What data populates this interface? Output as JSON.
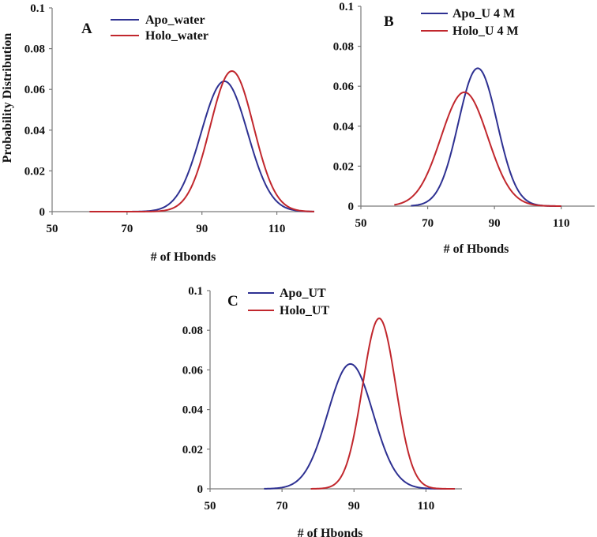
{
  "figure": {
    "ylabel": "Probability Distribution"
  },
  "chart_data": [
    {
      "type": "line",
      "panel": "A",
      "xlabel": "# of Hbonds",
      "ylabel": "Probability Distribution",
      "xlim": [
        50,
        120
      ],
      "ylim": [
        0,
        0.1
      ],
      "x_ticks": [
        "50",
        "70",
        "90",
        "110"
      ],
      "y_ticks": [
        "0",
        "0.02",
        "0.04",
        "0.06",
        "0.08",
        "0.1"
      ],
      "legend_position": "top-left",
      "series": [
        {
          "name": "Apo_water",
          "color": "#2e3192",
          "mean": 96,
          "peak": 0.064,
          "sd": 6.2,
          "x_range": [
            60,
            120
          ]
        },
        {
          "name": "Holo_water",
          "color": "#c1272d",
          "mean": 98,
          "peak": 0.069,
          "sd": 5.8,
          "x_range": [
            60,
            120
          ]
        }
      ]
    },
    {
      "type": "line",
      "panel": "B",
      "xlabel": "# of Hbonds",
      "ylabel": "",
      "xlim": [
        50,
        120
      ],
      "ylim": [
        0,
        0.1
      ],
      "x_ticks": [
        "50",
        "70",
        "90",
        "110"
      ],
      "y_ticks": [
        "0",
        "0.02",
        "0.04",
        "0.06",
        "0.08",
        "0.1"
      ],
      "legend_position": "top-left",
      "series": [
        {
          "name": "Apo_U 4 M",
          "color": "#2e3192",
          "mean": 85,
          "peak": 0.069,
          "sd": 5.8,
          "x_range": [
            65,
            110
          ]
        },
        {
          "name": "Holo_U 4 M",
          "color": "#c1272d",
          "mean": 81,
          "peak": 0.057,
          "sd": 7.0,
          "x_range": [
            60,
            110
          ]
        }
      ]
    },
    {
      "type": "line",
      "panel": "C",
      "xlabel": "# of Hbonds",
      "ylabel": "",
      "xlim": [
        50,
        120
      ],
      "ylim": [
        0,
        0.1
      ],
      "x_ticks": [
        "50",
        "70",
        "90",
        "110"
      ],
      "y_ticks": [
        "0",
        "0.02",
        "0.04",
        "0.06",
        "0.08",
        "0.1"
      ],
      "legend_position": "top-left",
      "series": [
        {
          "name": "Apo_UT",
          "color": "#2e3192",
          "mean": 89,
          "peak": 0.063,
          "sd": 6.3,
          "x_range": [
            65,
            118
          ]
        },
        {
          "name": "Holo_UT",
          "color": "#c1272d",
          "mean": 97,
          "peak": 0.086,
          "sd": 4.6,
          "x_range": [
            78,
            118
          ]
        }
      ]
    }
  ]
}
